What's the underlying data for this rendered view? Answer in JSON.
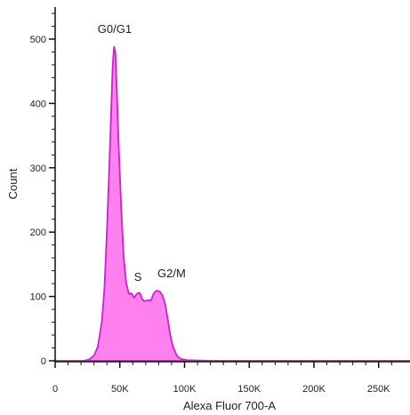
{
  "colors": {
    "fill": "#ff80ee",
    "stroke": "#cc22cc",
    "axis": "#111111"
  },
  "chart_data": {
    "type": "area",
    "xlabel": "Alexa Fluor 700-A",
    "ylabel": "Count",
    "xlim": [
      0,
      262144
    ],
    "ylim": [
      0,
      540
    ],
    "x_ticks": [
      {
        "value": 0,
        "label": "0"
      },
      {
        "value": 50000,
        "label": "50K"
      },
      {
        "value": 100000,
        "label": "100K"
      },
      {
        "value": 150000,
        "label": "150K"
      },
      {
        "value": 200000,
        "label": "200K"
      },
      {
        "value": 250000,
        "label": "250K"
      }
    ],
    "y_ticks": [
      {
        "value": 0,
        "label": "0"
      },
      {
        "value": 100,
        "label": "100"
      },
      {
        "value": 200,
        "label": "200"
      },
      {
        "value": 300,
        "label": "300"
      },
      {
        "value": 400,
        "label": "400"
      },
      {
        "value": 500,
        "label": "500"
      }
    ],
    "annotations": [
      {
        "text": "G0/G1",
        "x": 46000,
        "y": 510
      },
      {
        "text": "S",
        "x": 64000,
        "y": 124
      },
      {
        "text": "G2/M",
        "x": 90000,
        "y": 130
      }
    ],
    "series": [
      {
        "points": [
          [
            0,
            0
          ],
          [
            22000,
            0
          ],
          [
            26000,
            2
          ],
          [
            30000,
            8
          ],
          [
            33000,
            22
          ],
          [
            36000,
            60
          ],
          [
            38000,
            110
          ],
          [
            40000,
            200
          ],
          [
            42000,
            310
          ],
          [
            43500,
            400
          ],
          [
            44500,
            460
          ],
          [
            45500,
            488
          ],
          [
            46500,
            480
          ],
          [
            47500,
            430
          ],
          [
            49000,
            340
          ],
          [
            51000,
            240
          ],
          [
            53000,
            160
          ],
          [
            55000,
            120
          ],
          [
            57000,
            104
          ],
          [
            59000,
            105
          ],
          [
            61000,
            98
          ],
          [
            63000,
            104
          ],
          [
            65000,
            106
          ],
          [
            66000,
            103
          ],
          [
            67500,
            95
          ],
          [
            69000,
            93
          ],
          [
            72000,
            94
          ],
          [
            74000,
            94
          ],
          [
            76000,
            104
          ],
          [
            77500,
            108
          ],
          [
            79000,
            109
          ],
          [
            81000,
            107
          ],
          [
            83000,
            101
          ],
          [
            85000,
            88
          ],
          [
            87000,
            65
          ],
          [
            89000,
            40
          ],
          [
            91000,
            22
          ],
          [
            94000,
            8
          ],
          [
            97000,
            3
          ],
          [
            102000,
            1
          ],
          [
            120000,
            0
          ],
          [
            262144,
            0
          ]
        ]
      }
    ]
  }
}
